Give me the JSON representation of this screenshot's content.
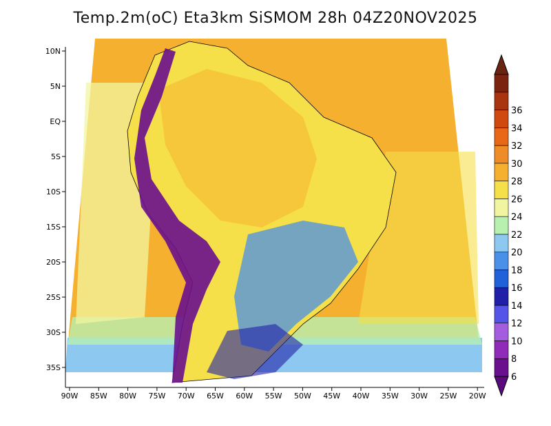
{
  "title": "Temp.2m(oC) Eta3km SiSMOM 28h 04Z20NOV2025",
  "map": {
    "lon_labels": [
      "90W",
      "85W",
      "80W",
      "75W",
      "70W",
      "65W",
      "60W",
      "55W",
      "50W",
      "45W",
      "40W",
      "35W",
      "30W",
      "25W",
      "20W"
    ],
    "lat_labels": [
      "10N",
      "5N",
      "EQ",
      "5S",
      "10S",
      "15S",
      "20S",
      "25S",
      "30S",
      "35S"
    ],
    "variable": "2 m air temperature",
    "units": "oC"
  },
  "colorbar": {
    "labels": [
      "6",
      "8",
      "10",
      "12",
      "14",
      "16",
      "18",
      "20",
      "22",
      "24",
      "26",
      "28",
      "30",
      "32",
      "34",
      "36"
    ],
    "colors": [
      "#6a0f8e",
      "#8f2bb8",
      "#a55de0",
      "#5454e8",
      "#1f1fa8",
      "#2060d8",
      "#4a90e8",
      "#8cc8f0",
      "#b8f0b0",
      "#f2f5a0",
      "#f5e04a",
      "#f5b030",
      "#f08c28",
      "#e86818",
      "#d04a10",
      "#a83410",
      "#7a2410"
    ],
    "top_arrow_color": "#6a2412",
    "bottom_arrow_color": "#5a0a7a"
  }
}
